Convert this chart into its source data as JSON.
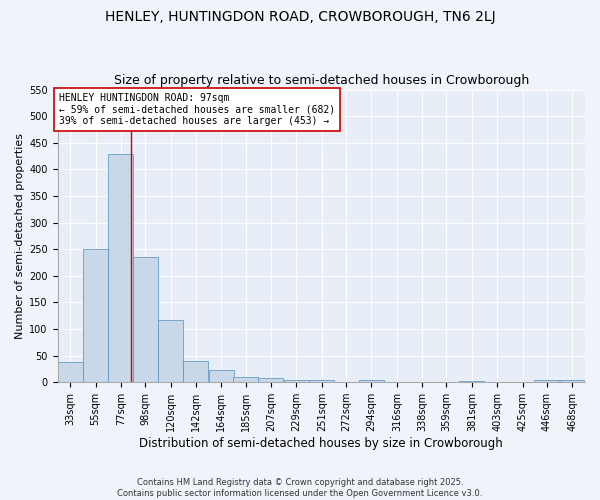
{
  "title": "HENLEY, HUNTINGDON ROAD, CROWBOROUGH, TN6 2LJ",
  "subtitle": "Size of property relative to semi-detached houses in Crowborough",
  "xlabel": "Distribution of semi-detached houses by size in Crowborough",
  "ylabel": "Number of semi-detached properties",
  "bar_color": "#c8d8e8",
  "bar_edge_color": "#5090c0",
  "background_color": "#e8eef8",
  "grid_color": "#ffffff",
  "fig_background": "#f0f4fa",
  "bins": [
    "33sqm",
    "55sqm",
    "77sqm",
    "98sqm",
    "120sqm",
    "142sqm",
    "164sqm",
    "185sqm",
    "207sqm",
    "229sqm",
    "251sqm",
    "272sqm",
    "294sqm",
    "316sqm",
    "338sqm",
    "359sqm",
    "381sqm",
    "403sqm",
    "425sqm",
    "446sqm",
    "468sqm"
  ],
  "values": [
    38,
    251,
    428,
    236,
    117,
    40,
    23,
    10,
    8,
    5,
    4,
    0,
    4,
    0,
    0,
    0,
    3,
    0,
    0,
    4,
    5
  ],
  "property_line_x": 97,
  "bin_edges": [
    33,
    55,
    77,
    98,
    120,
    142,
    164,
    185,
    207,
    229,
    251,
    272,
    294,
    316,
    338,
    359,
    381,
    403,
    425,
    446,
    468
  ],
  "annotation_text": "HENLEY HUNTINGDON ROAD: 97sqm\n← 59% of semi-detached houses are smaller (682)\n39% of semi-detached houses are larger (453) →",
  "annotation_box_color": "#ffffff",
  "annotation_box_edge_color": "#cc0000",
  "vline_color": "#cc0000",
  "ylim": [
    0,
    550
  ],
  "yticks": [
    0,
    50,
    100,
    150,
    200,
    250,
    300,
    350,
    400,
    450,
    500,
    550
  ],
  "footer_text": "Contains HM Land Registry data © Crown copyright and database right 2025.\nContains public sector information licensed under the Open Government Licence v3.0.",
  "title_fontsize": 10,
  "subtitle_fontsize": 9,
  "xlabel_fontsize": 8.5,
  "ylabel_fontsize": 8,
  "tick_fontsize": 7,
  "annotation_fontsize": 7,
  "footer_fontsize": 6
}
